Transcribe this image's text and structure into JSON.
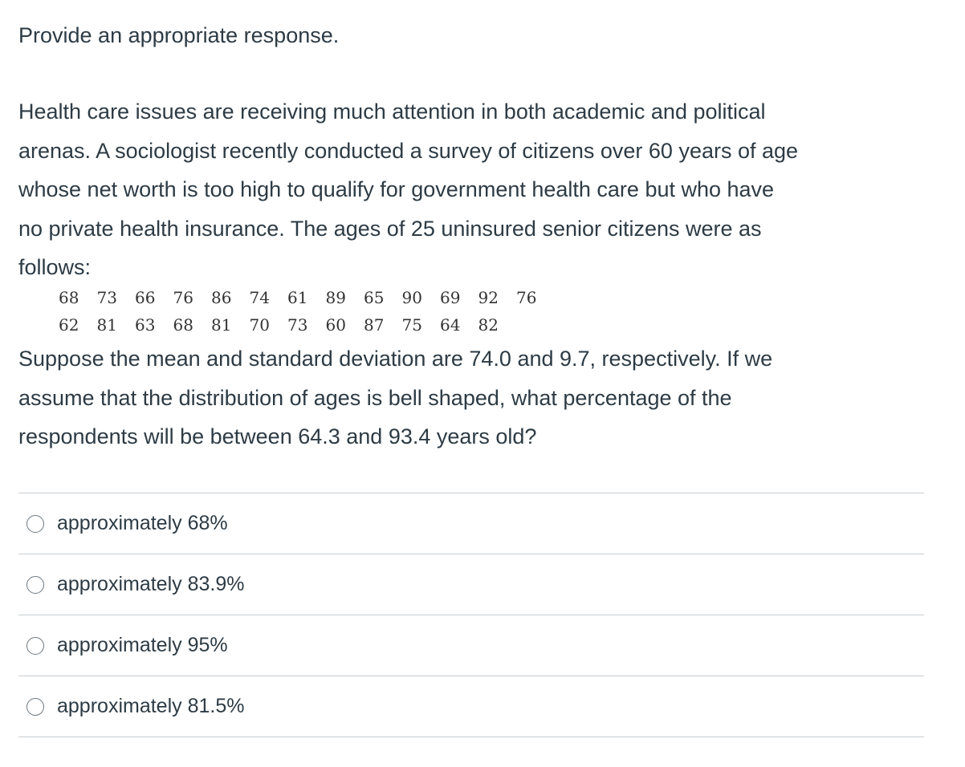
{
  "instruction": "Provide an appropriate response.",
  "question": {
    "lines": [
      "Health care issues are receiving much attention in both academic and political",
      "arenas. A sociologist recently conducted a survey of citizens over 60 years of age",
      "whose net worth is too high to qualify for government health care but who have",
      "no private health insurance. The ages of 25 uninsured senior citizens were as",
      "follows:"
    ],
    "data_rows": [
      [
        "68",
        "73",
        "66",
        "76",
        "86",
        "74",
        "61",
        "89",
        "65",
        "90",
        "69",
        "92",
        "76"
      ],
      [
        "62",
        "81",
        "63",
        "68",
        "81",
        "70",
        "73",
        "60",
        "87",
        "75",
        "64",
        "82"
      ]
    ],
    "followup_lines": [
      "Suppose the mean and standard deviation are 74.0 and 9.7, respectively. If we",
      "assume that the distribution of ages is bell shaped, what percentage of the",
      "respondents will be between 64.3 and 93.4 years old?"
    ]
  },
  "answers": [
    {
      "label": "approximately 68%"
    },
    {
      "label": "approximately 83.9%"
    },
    {
      "label": "approximately 95%"
    },
    {
      "label": "approximately 81.5%"
    }
  ]
}
